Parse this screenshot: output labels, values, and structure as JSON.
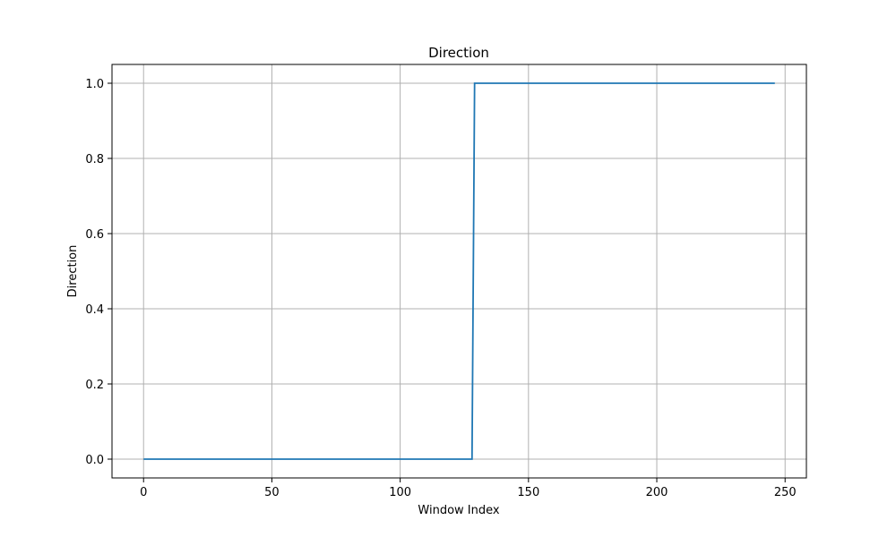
{
  "chart_data": {
    "type": "line",
    "title": "Direction",
    "xlabel": "Window Index",
    "ylabel": "Direction",
    "xlim": [
      -12.3,
      258.3
    ],
    "ylim": [
      -0.05,
      1.05
    ],
    "xticks": [
      0,
      50,
      100,
      150,
      200,
      250
    ],
    "yticks": [
      0.0,
      0.2,
      0.4,
      0.6,
      0.8,
      1.0
    ],
    "xtick_labels": [
      "0",
      "50",
      "100",
      "150",
      "200",
      "250"
    ],
    "ytick_labels": [
      "0.0",
      "0.2",
      "0.4",
      "0.6",
      "0.8",
      "1.0"
    ],
    "grid": true,
    "series": [
      {
        "color": "#1f77b4",
        "x": [
          0,
          128,
          129,
          246
        ],
        "y": [
          0,
          0,
          1,
          1
        ]
      }
    ]
  }
}
